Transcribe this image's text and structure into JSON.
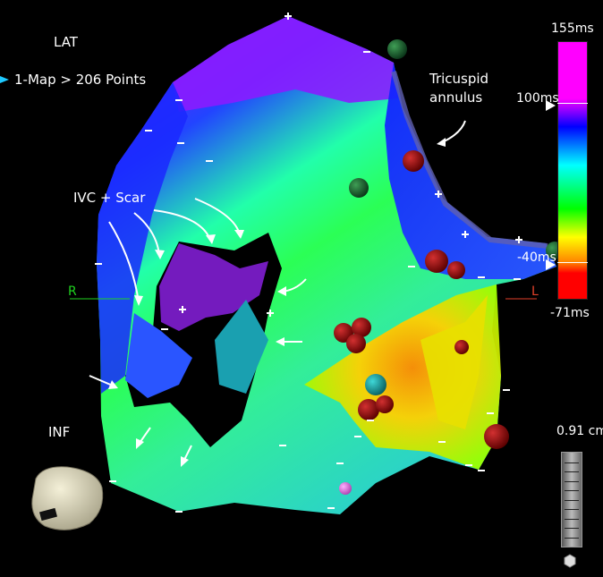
{
  "header": {
    "view_label": "LAT",
    "map_label": "1-Map > 206 Points",
    "map_marker_icon": "triangle-pointer-icon",
    "map_marker_color": "#1ec9ff"
  },
  "orientation": {
    "right_label": "R",
    "left_label": "L",
    "bottom_label": "INF"
  },
  "annotations": {
    "tricuspid": "Tricuspid\nannulus",
    "ivc_scar": "IVC + Scar"
  },
  "color_scale": {
    "max_label": "155ms",
    "upper_marker_label": "100ms",
    "lower_marker_label": "-40ms",
    "min_label": "-71ms",
    "colors": [
      "#ff00ff",
      "#0000ff",
      "#00ffff",
      "#00ff00",
      "#ffff00",
      "#ff8000",
      "#ff0000"
    ]
  },
  "scale_bar": {
    "label": "0.91 cm"
  }
}
